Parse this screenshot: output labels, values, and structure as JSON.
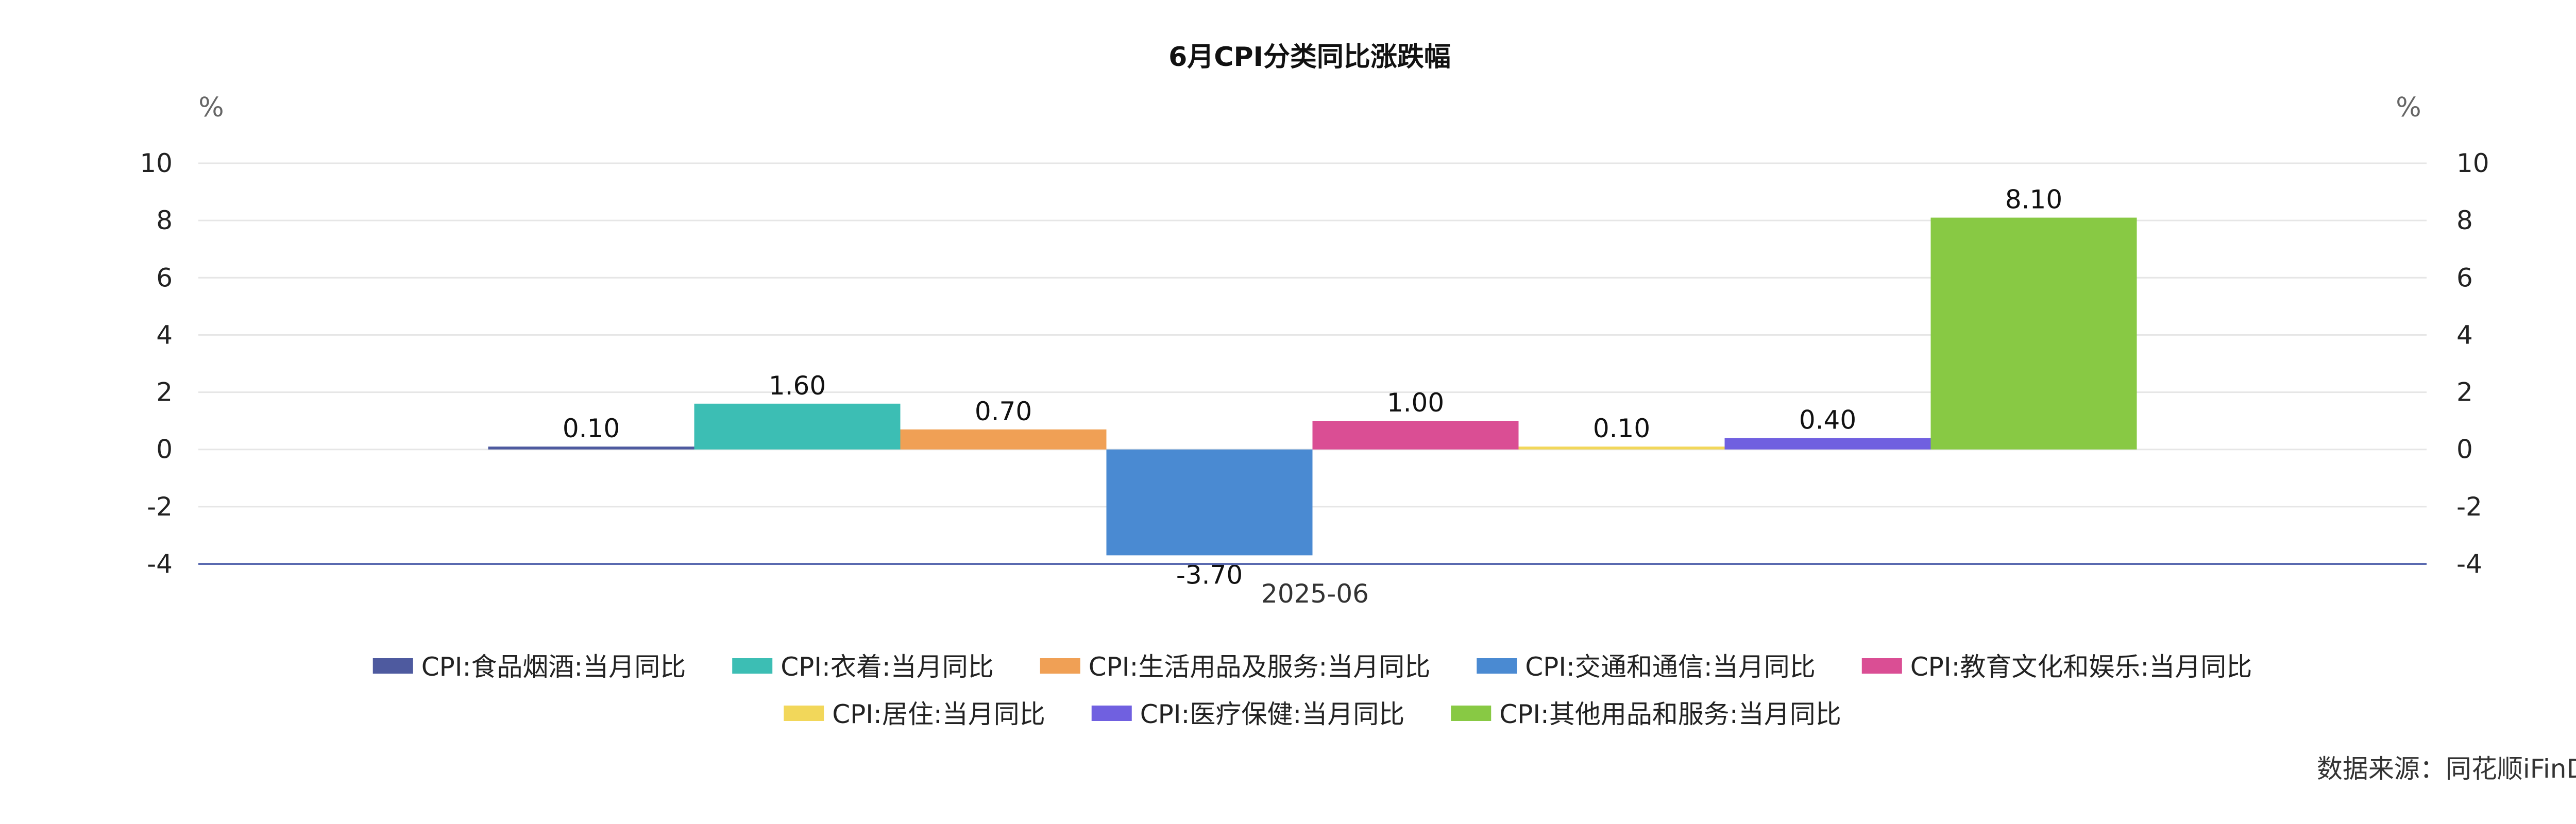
{
  "chart_data": {
    "type": "bar",
    "title": "6月CPI分类同比涨跌幅",
    "categories": [
      "2025-06"
    ],
    "y_unit_left": "%",
    "y_unit_right": "%",
    "ylim": [
      -4,
      10
    ],
    "yticks": [
      -4,
      -2,
      0,
      2,
      4,
      6,
      8,
      10
    ],
    "grid": true,
    "legend_placement": "bottom",
    "series": [
      {
        "name": "CPI:食品烟酒:当月同比",
        "values": [
          0.1
        ],
        "label": "0.10",
        "color": "#4e5a9f"
      },
      {
        "name": "CPI:衣着:当月同比",
        "values": [
          1.6
        ],
        "label": "1.60",
        "color": "#3cbeb4"
      },
      {
        "name": "CPI:生活用品及服务:当月同比",
        "values": [
          0.7
        ],
        "label": "0.70",
        "color": "#f0a055"
      },
      {
        "name": "CPI:交通和通信:当月同比",
        "values": [
          -3.7
        ],
        "label": "-3.70",
        "color": "#4a8ad2"
      },
      {
        "name": "CPI:教育文化和娱乐:当月同比",
        "values": [
          1.0
        ],
        "label": "1.00",
        "color": "#da4e94"
      },
      {
        "name": "CPI:居住:当月同比",
        "values": [
          0.1
        ],
        "label": "0.10",
        "color": "#f2d75a"
      },
      {
        "name": "CPI:医疗保健:当月同比",
        "values": [
          0.4
        ],
        "label": "0.40",
        "color": "#7060e0"
      },
      {
        "name": "CPI:其他用品和服务:当月同比",
        "values": [
          8.1
        ],
        "label": "8.10",
        "color": "#88c944"
      }
    ],
    "axis_color": "#5a6ab0",
    "grid_color": "#e6e6e6"
  },
  "source_text": "数据来源：同花顺iFinD"
}
